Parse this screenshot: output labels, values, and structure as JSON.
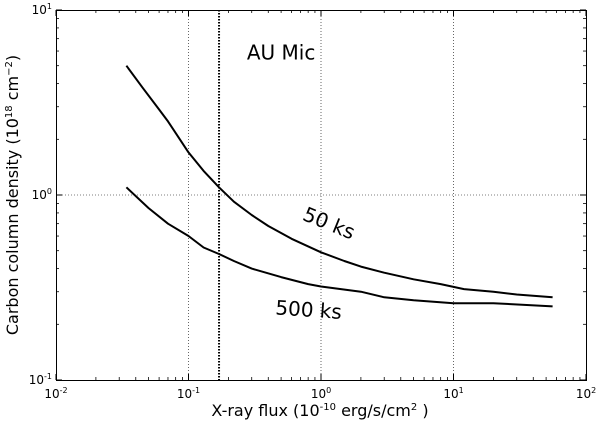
{
  "chart_data": {
    "type": "line",
    "title": "",
    "xlabel": "X-ray flux (10^-10 erg/s/cm^2 )",
    "ylabel": "Carbon column density (10^18 cm^-2)",
    "x_scale": "log",
    "y_scale": "log",
    "xlim": [
      0.01,
      100
    ],
    "ylim": [
      0.1,
      10
    ],
    "grid": "major, dotted",
    "x_ticks": [
      {
        "value": 0.01,
        "base": "10",
        "exp": "-2"
      },
      {
        "value": 0.1,
        "base": "10",
        "exp": "-1"
      },
      {
        "value": 1,
        "base": "10",
        "exp": "0"
      },
      {
        "value": 10,
        "base": "10",
        "exp": "1"
      },
      {
        "value": 100,
        "base": "10",
        "exp": "2"
      }
    ],
    "y_ticks": [
      {
        "value": 0.1,
        "base": "10",
        "exp": "-1"
      },
      {
        "value": 1,
        "base": "10",
        "exp": "0"
      },
      {
        "value": 10,
        "base": "10",
        "exp": "1"
      }
    ],
    "vline": {
      "x": 0.17,
      "style": "dotted",
      "label": "AU Mic"
    },
    "series": [
      {
        "name": "50 ks",
        "x": [
          0.034,
          0.045,
          0.06,
          0.07,
          0.1,
          0.13,
          0.17,
          0.22,
          0.3,
          0.4,
          0.6,
          1.0,
          1.5,
          2.0,
          3.0,
          5.0,
          8.0,
          12,
          20,
          30,
          56
        ],
        "y": [
          5.0,
          3.8,
          2.9,
          2.5,
          1.7,
          1.35,
          1.1,
          0.92,
          0.78,
          0.68,
          0.58,
          0.49,
          0.44,
          0.41,
          0.38,
          0.35,
          0.33,
          0.31,
          0.3,
          0.29,
          0.28
        ]
      },
      {
        "name": "500 ks",
        "x": [
          0.034,
          0.05,
          0.07,
          0.1,
          0.13,
          0.17,
          0.22,
          0.3,
          0.5,
          0.8,
          1.0,
          2.0,
          3.0,
          5.0,
          10,
          20,
          56
        ],
        "y": [
          1.1,
          0.85,
          0.7,
          0.6,
          0.52,
          0.48,
          0.44,
          0.4,
          0.36,
          0.33,
          0.32,
          0.3,
          0.28,
          0.27,
          0.26,
          0.26,
          0.25
        ]
      }
    ],
    "annotations": [
      {
        "text": "AU Mic",
        "x": 0.5,
        "y": 5.4
      },
      {
        "text": "50 ks",
        "x": 1.1,
        "y": 0.65
      },
      {
        "text": "500 ks",
        "x": 0.8,
        "y": 0.22
      }
    ]
  }
}
